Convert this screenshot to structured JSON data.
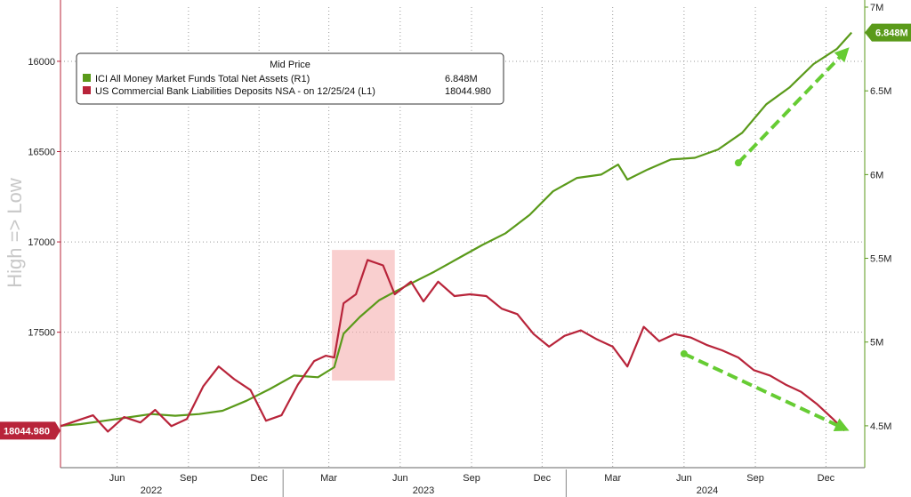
{
  "chart_data": {
    "type": "line",
    "ylabel_left": "High => Low",
    "legend": {
      "title": "Mid Price",
      "entries": [
        {
          "label": "ICI All Money Market Funds Total Net Assets  (R1)",
          "value": "6.848M",
          "color": "#5a9a1a"
        },
        {
          "label": "US Commercial Bank Liabilities Deposits NSA -  on 12/25/24  (L1)",
          "value": "18044.980",
          "color": "#b8243a"
        }
      ]
    },
    "y_left": {
      "min": 15700,
      "max": 18250,
      "inverted": true,
      "ticks": [
        "16000",
        "16500",
        "17000",
        "17500"
      ],
      "tick_values": [
        16000,
        16500,
        17000,
        17500
      ]
    },
    "y_right": {
      "min": 4.25,
      "max": 7.0,
      "ticks": [
        "7M",
        "6.5M",
        "6M",
        "5.5M",
        "5M",
        "4.5M"
      ],
      "tick_values": [
        7.0,
        6.5,
        6.0,
        5.5,
        5.0,
        4.5
      ]
    },
    "x_range": [
      "2022-03-20",
      "2025-01-20"
    ],
    "month_ticks": [
      {
        "label": "Jun",
        "date": "2022-06-01"
      },
      {
        "label": "Sep",
        "date": "2022-09-01"
      },
      {
        "label": "Dec",
        "date": "2022-12-01"
      },
      {
        "label": "Mar",
        "date": "2023-03-01"
      },
      {
        "label": "Jun",
        "date": "2023-06-01"
      },
      {
        "label": "Sep",
        "date": "2023-09-01"
      },
      {
        "label": "Dec",
        "date": "2023-12-01"
      },
      {
        "label": "Mar",
        "date": "2024-03-01"
      },
      {
        "label": "Jun",
        "date": "2024-06-01"
      },
      {
        "label": "Sep",
        "date": "2024-09-01"
      },
      {
        "label": "Dec",
        "date": "2024-12-01"
      }
    ],
    "year_ticks": [
      {
        "label": "2022",
        "date": "2022-07-15"
      },
      {
        "label": "2023",
        "date": "2023-07-01"
      },
      {
        "label": "2024",
        "date": "2024-07-01"
      }
    ],
    "year_separators": [
      "2023-01-01",
      "2024-01-01"
    ],
    "highlight": {
      "from": "2023-03-05",
      "to": "2023-05-25",
      "y_top": 5.55,
      "y_bottom": 4.77,
      "color": "#f4a7a7"
    },
    "last_value_badges": [
      {
        "text": "6.848M",
        "axis": "right",
        "value": 6.848,
        "color": "#5a9a1a"
      },
      {
        "text": "18044.980",
        "axis": "left",
        "value": 18044.98,
        "color": "#b8243a"
      }
    ],
    "series": [
      {
        "name": "ICI All Money Market Funds Total Net Assets  (R1)",
        "axis": "right",
        "color": "#5a9a1a",
        "points": [
          [
            "2022-03-20",
            4.5
          ],
          [
            "2022-04-15",
            4.51
          ],
          [
            "2022-05-15",
            4.53
          ],
          [
            "2022-06-15",
            4.55
          ],
          [
            "2022-07-15",
            4.57
          ],
          [
            "2022-08-15",
            4.56
          ],
          [
            "2022-09-15",
            4.57
          ],
          [
            "2022-10-15",
            4.59
          ],
          [
            "2022-11-15",
            4.65
          ],
          [
            "2022-12-15",
            4.72
          ],
          [
            "2023-01-15",
            4.8
          ],
          [
            "2023-02-15",
            4.79
          ],
          [
            "2023-03-08",
            4.85
          ],
          [
            "2023-03-20",
            5.05
          ],
          [
            "2023-04-10",
            5.15
          ],
          [
            "2023-05-05",
            5.25
          ],
          [
            "2023-05-25",
            5.3
          ],
          [
            "2023-06-15",
            5.35
          ],
          [
            "2023-07-15",
            5.42
          ],
          [
            "2023-08-15",
            5.5
          ],
          [
            "2023-09-15",
            5.58
          ],
          [
            "2023-10-15",
            5.65
          ],
          [
            "2023-11-15",
            5.76
          ],
          [
            "2023-12-15",
            5.9
          ],
          [
            "2024-01-15",
            5.98
          ],
          [
            "2024-02-15",
            6.0
          ],
          [
            "2024-03-08",
            6.06
          ],
          [
            "2024-03-20",
            5.97
          ],
          [
            "2024-04-15",
            6.03
          ],
          [
            "2024-05-15",
            6.09
          ],
          [
            "2024-06-15",
            6.1
          ],
          [
            "2024-07-15",
            6.15
          ],
          [
            "2024-08-15",
            6.25
          ],
          [
            "2024-09-15",
            6.42
          ],
          [
            "2024-10-15",
            6.52
          ],
          [
            "2024-11-15",
            6.66
          ],
          [
            "2024-12-15",
            6.75
          ],
          [
            "2025-01-03",
            6.848
          ]
        ]
      },
      {
        "name": "US Commercial Bank Liabilities Deposits NSA -  on 12/25/24  (L1)",
        "axis": "left",
        "color": "#b8243a",
        "points": [
          [
            "2022-03-20",
            18020
          ],
          [
            "2022-04-10",
            17990
          ],
          [
            "2022-05-01",
            17960
          ],
          [
            "2022-05-20",
            18050
          ],
          [
            "2022-06-10",
            17970
          ],
          [
            "2022-07-01",
            18000
          ],
          [
            "2022-07-20",
            17930
          ],
          [
            "2022-08-10",
            18020
          ],
          [
            "2022-08-30",
            17980
          ],
          [
            "2022-09-20",
            17800
          ],
          [
            "2022-10-10",
            17690
          ],
          [
            "2022-10-30",
            17760
          ],
          [
            "2022-11-20",
            17820
          ],
          [
            "2022-12-10",
            17990
          ],
          [
            "2022-12-30",
            17960
          ],
          [
            "2023-01-20",
            17790
          ],
          [
            "2023-02-10",
            17660
          ],
          [
            "2023-02-25",
            17630
          ],
          [
            "2023-03-08",
            17640
          ],
          [
            "2023-03-20",
            17340
          ],
          [
            "2023-04-05",
            17290
          ],
          [
            "2023-04-20",
            17100
          ],
          [
            "2023-05-10",
            17130
          ],
          [
            "2023-05-25",
            17290
          ],
          [
            "2023-06-15",
            17220
          ],
          [
            "2023-07-01",
            17330
          ],
          [
            "2023-07-20",
            17220
          ],
          [
            "2023-08-10",
            17300
          ],
          [
            "2023-08-30",
            17290
          ],
          [
            "2023-09-20",
            17300
          ],
          [
            "2023-10-10",
            17370
          ],
          [
            "2023-10-30",
            17400
          ],
          [
            "2023-11-20",
            17510
          ],
          [
            "2023-12-10",
            17580
          ],
          [
            "2023-12-30",
            17520
          ],
          [
            "2024-01-20",
            17490
          ],
          [
            "2024-02-10",
            17540
          ],
          [
            "2024-03-01",
            17580
          ],
          [
            "2024-03-20",
            17690
          ],
          [
            "2024-04-10",
            17470
          ],
          [
            "2024-04-30",
            17550
          ],
          [
            "2024-05-20",
            17510
          ],
          [
            "2024-06-10",
            17530
          ],
          [
            "2024-06-30",
            17570
          ],
          [
            "2024-07-20",
            17600
          ],
          [
            "2024-08-10",
            17640
          ],
          [
            "2024-08-30",
            17710
          ],
          [
            "2024-09-20",
            17740
          ],
          [
            "2024-10-10",
            17790
          ],
          [
            "2024-10-30",
            17830
          ],
          [
            "2024-11-20",
            17900
          ],
          [
            "2024-12-10",
            17980
          ],
          [
            "2024-12-25",
            18044.98
          ]
        ]
      }
    ],
    "trend_arrows": [
      {
        "axis": "right",
        "from": [
          "2024-08-10",
          6.07
        ],
        "to": [
          "2024-12-31",
          6.76
        ],
        "color": "#66cc33"
      },
      {
        "axis": "right",
        "from": [
          "2024-06-01",
          4.93
        ],
        "to": [
          "2024-12-31",
          4.47
        ],
        "color": "#66cc33"
      }
    ]
  }
}
